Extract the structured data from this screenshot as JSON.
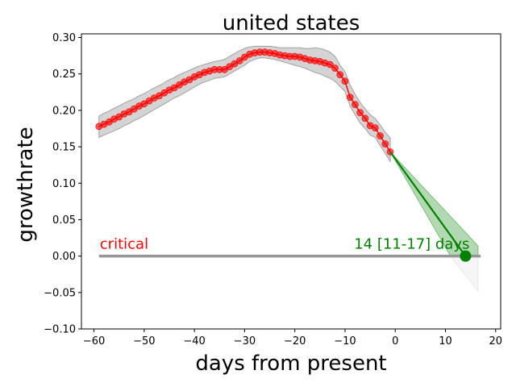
{
  "chart_data": {
    "type": "line",
    "title": "united states",
    "xlabel": "days from present",
    "ylabel": "growthrate",
    "xlim": [
      -62.5,
      21
    ],
    "ylim": [
      -0.1,
      0.305
    ],
    "xticks": [
      -60,
      -50,
      -40,
      -30,
      -20,
      -10,
      0,
      10,
      20
    ],
    "yticks": [
      -0.1,
      -0.05,
      0.0,
      0.05,
      0.1,
      0.15,
      0.2,
      0.25,
      0.3
    ],
    "xtick_labels": [
      "−60",
      "−50",
      "−40",
      "−30",
      "−20",
      "−10",
      "0",
      "10",
      "20"
    ],
    "ytick_labels": [
      "−0.10",
      "−0.05",
      "0.00",
      "0.05",
      "0.10",
      "0.15",
      "0.20",
      "0.25",
      "0.30"
    ],
    "grid": false,
    "colors": {
      "observed": "#ff0000",
      "band": "#a0a0a0",
      "forecast": "#008000",
      "critical_line": "#969696",
      "critical_text": "#ff0000"
    },
    "series": [
      {
        "kind": "observed",
        "x": [
          -59,
          -58,
          -57,
          -56,
          -55,
          -54,
          -53,
          -52,
          -51,
          -50,
          -49,
          -48,
          -47,
          -46,
          -45,
          -44,
          -43,
          -42,
          -41,
          -40,
          -39,
          -38,
          -37,
          -36,
          -35,
          -34,
          -33,
          -32,
          -31,
          -30,
          -29,
          -28,
          -27,
          -26,
          -25,
          -24,
          -23,
          -22,
          -21,
          -20,
          -19,
          -18,
          -17,
          -16,
          -15,
          -14,
          -13,
          -12,
          -11,
          -10,
          -9,
          -8,
          -7,
          -6,
          -5,
          -4,
          -3,
          -2,
          -1
        ],
        "y": [
          0.178,
          0.181,
          0.184,
          0.188,
          0.191,
          0.195,
          0.198,
          0.202,
          0.206,
          0.209,
          0.213,
          0.217,
          0.22,
          0.224,
          0.228,
          0.231,
          0.235,
          0.239,
          0.242,
          0.246,
          0.249,
          0.252,
          0.254,
          0.256,
          0.256,
          0.256,
          0.26,
          0.264,
          0.268,
          0.273,
          0.277,
          0.279,
          0.28,
          0.28,
          0.279,
          0.278,
          0.276,
          0.275,
          0.274,
          0.274,
          0.273,
          0.271,
          0.269,
          0.268,
          0.267,
          0.265,
          0.263,
          0.258,
          0.249,
          0.24,
          0.218,
          0.208,
          0.197,
          0.189,
          0.179,
          0.176,
          0.165,
          0.154,
          0.143
        ],
        "upper": [
          0.192,
          0.196,
          0.199,
          0.203,
          0.206,
          0.21,
          0.213,
          0.216,
          0.22,
          0.223,
          0.227,
          0.231,
          0.234,
          0.238,
          0.242,
          0.245,
          0.249,
          0.252,
          0.255,
          0.258,
          0.261,
          0.263,
          0.265,
          0.267,
          0.268,
          0.27,
          0.274,
          0.278,
          0.282,
          0.285,
          0.287,
          0.288,
          0.288,
          0.288,
          0.288,
          0.287,
          0.286,
          0.286,
          0.286,
          0.286,
          0.286,
          0.285,
          0.285,
          0.286,
          0.285,
          0.283,
          0.28,
          0.274,
          0.262,
          0.253,
          0.235,
          0.222,
          0.211,
          0.202,
          0.194,
          0.189,
          0.18,
          0.17,
          0.162
        ],
        "lower": [
          0.163,
          0.166,
          0.169,
          0.172,
          0.175,
          0.179,
          0.182,
          0.186,
          0.189,
          0.193,
          0.197,
          0.201,
          0.205,
          0.209,
          0.213,
          0.217,
          0.22,
          0.224,
          0.228,
          0.232,
          0.236,
          0.239,
          0.241,
          0.244,
          0.245,
          0.246,
          0.25,
          0.254,
          0.258,
          0.262,
          0.267,
          0.27,
          0.272,
          0.272,
          0.271,
          0.27,
          0.268,
          0.266,
          0.264,
          0.262,
          0.26,
          0.258,
          0.255,
          0.252,
          0.25,
          0.247,
          0.244,
          0.24,
          0.233,
          0.226,
          0.206,
          0.194,
          0.183,
          0.175,
          0.166,
          0.163,
          0.152,
          0.141,
          0.13
        ]
      },
      {
        "kind": "forecast",
        "x": [
          -1,
          14
        ],
        "y": [
          0.143,
          0.0
        ],
        "upper_x": [
          -1,
          16.5
        ],
        "upper_y": [
          0.143,
          0.014
        ],
        "lower_x": [
          -1,
          11
        ],
        "lower_y": [
          0.143,
          0.0
        ],
        "lower_tail_x": [
          11,
          16.5
        ],
        "lower_tail_y": [
          0.0,
          -0.048
        ]
      }
    ],
    "critical_line": {
      "y": 0.0,
      "x_start": -59,
      "x_end": 17
    },
    "crossing_point": {
      "x": 14,
      "y": 0.0
    },
    "annotations": {
      "critical": "critical",
      "crossing": "14 [11-17] days"
    }
  }
}
